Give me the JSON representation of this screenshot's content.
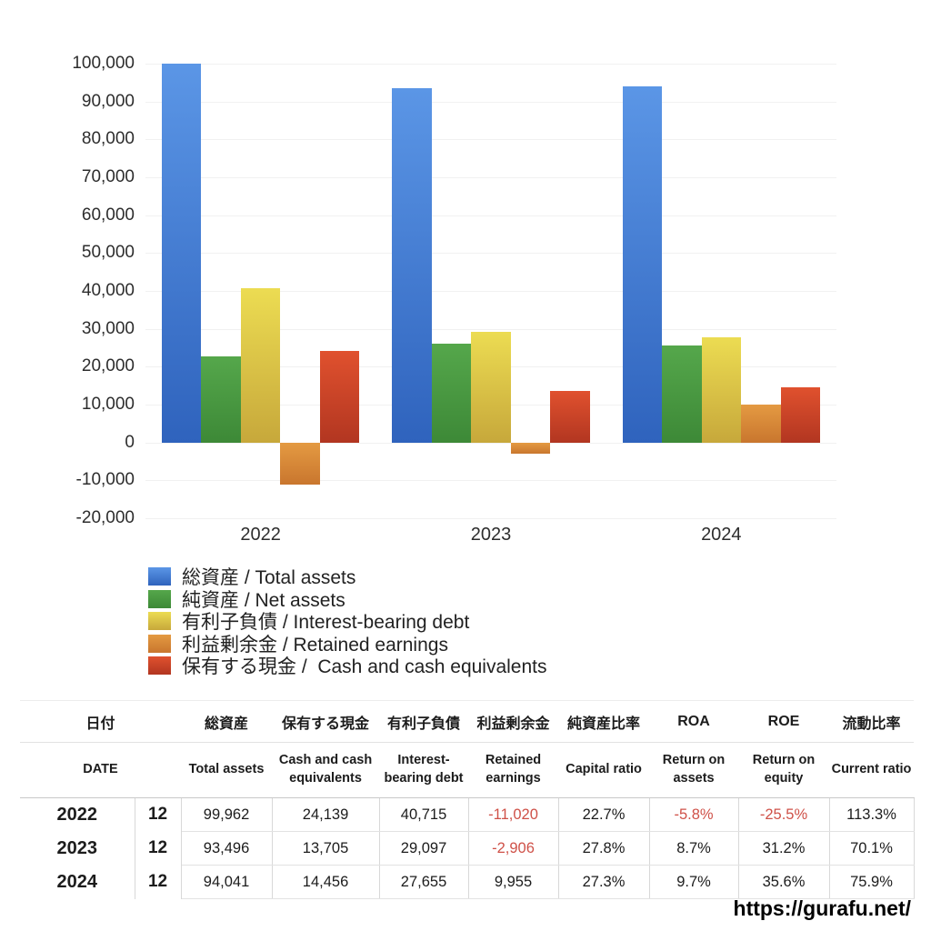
{
  "page": {
    "url_caption": "https://gurafu.net/"
  },
  "chart_data": {
    "type": "bar",
    "title": "",
    "xlabel": "",
    "ylabel": "",
    "categories": [
      "2022",
      "2023",
      "2024"
    ],
    "series": [
      {
        "name": "総資産 / Total assets",
        "values": [
          99962,
          93496,
          94041
        ],
        "color_top": "#5b96e6",
        "color_bottom": "#2f63bd"
      },
      {
        "name": "純資産 / Net assets",
        "values": [
          22691,
          25992,
          25673
        ],
        "color_top": "#55a74b",
        "color_bottom": "#3d8937"
      },
      {
        "name": "有利子負債 / Interest-bearing debt",
        "values": [
          40715,
          29097,
          27655
        ],
        "color_top": "#ecdc52",
        "color_bottom": "#c7a83b"
      },
      {
        "name": "利益剰余金 / Retained earnings",
        "values": [
          -11020,
          -2906,
          9955
        ],
        "color_top": "#e49a42",
        "color_bottom": "#c9762e"
      },
      {
        "name": "保有する現金 /  Cash and cash equivalents",
        "values": [
          24139,
          13705,
          14456
        ],
        "color_top": "#e0512e",
        "color_bottom": "#b23621"
      }
    ],
    "ylim": [
      -20000,
      100000
    ],
    "ytick_step": 10000,
    "yticks": [
      100000,
      90000,
      80000,
      70000,
      60000,
      50000,
      40000,
      30000,
      20000,
      10000,
      0,
      -10000,
      -20000
    ],
    "grid": true,
    "legend_position": "bottom-left"
  },
  "table": {
    "columns": [
      {
        "jp": "日付",
        "en": "DATE"
      },
      {
        "jp": "総資産",
        "en": "Total assets"
      },
      {
        "jp": "保有する現金",
        "en": "Cash and cash equivalents"
      },
      {
        "jp": "有利子負債",
        "en": "Interest-bearing debt"
      },
      {
        "jp": "利益剰余金",
        "en": "Retained earnings"
      },
      {
        "jp": "純資産比率",
        "en": "Capital ratio"
      },
      {
        "jp": "ROA",
        "en": "Return on assets"
      },
      {
        "jp": "ROE",
        "en": "Return on equity"
      },
      {
        "jp": "流動比率",
        "en": "Current ratio"
      }
    ],
    "rows": [
      {
        "year": "2022",
        "month": "12",
        "values": [
          "99,962",
          "24,139",
          "40,715",
          "-11,020",
          "22.7%",
          "-5.8%",
          "-25.5%",
          "113.3%"
        ]
      },
      {
        "year": "2023",
        "month": "12",
        "values": [
          "93,496",
          "13,705",
          "29,097",
          "-2,906",
          "27.8%",
          "8.7%",
          "31.2%",
          "70.1%"
        ]
      },
      {
        "year": "2024",
        "month": "12",
        "values": [
          "94,041",
          "14,456",
          "27,655",
          "9,955",
          "27.3%",
          "9.7%",
          "35.6%",
          "75.9%"
        ]
      }
    ],
    "negative_color": "#cf5148"
  }
}
